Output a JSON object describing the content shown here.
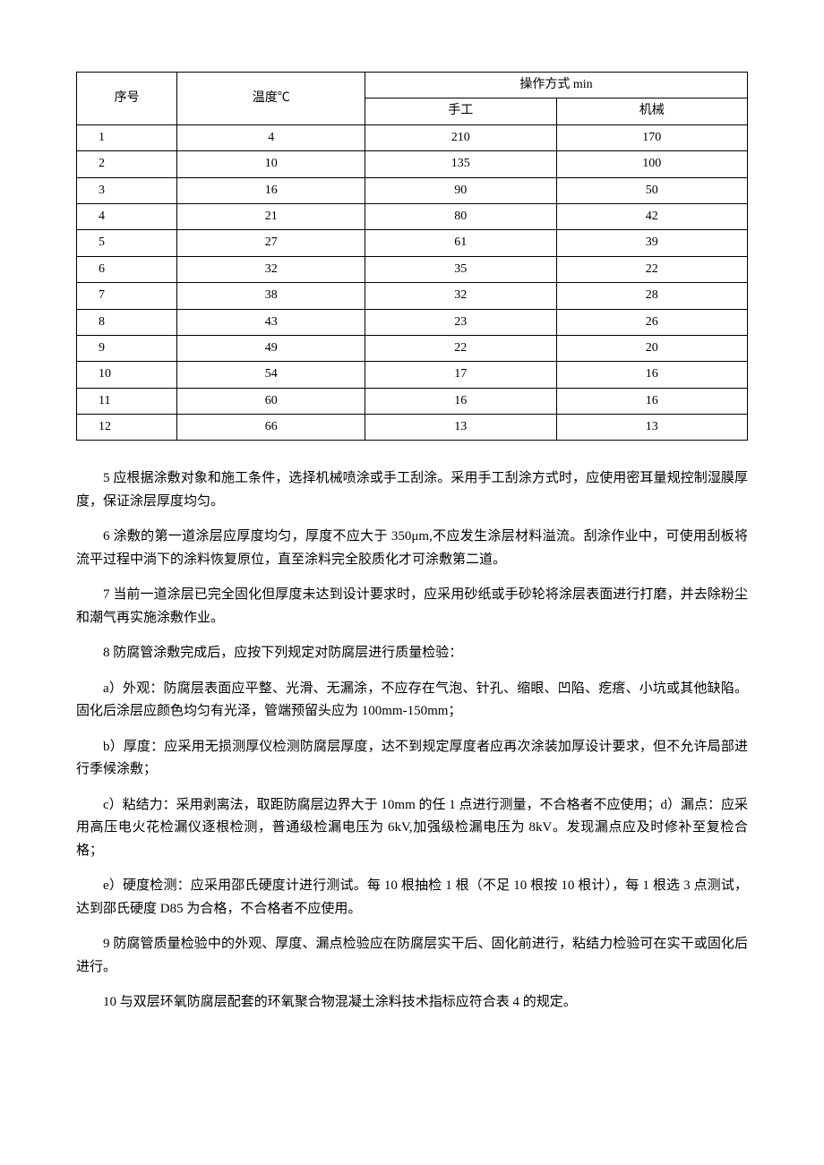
{
  "table": {
    "header": {
      "col1": "序号",
      "col2": "温度℃",
      "col3_group": "操作方式 min",
      "col3a": "手工",
      "col3b": "机械"
    },
    "rows": [
      {
        "seq": "1",
        "temp": "4",
        "manual": "210",
        "mech": "170"
      },
      {
        "seq": "2",
        "temp": "10",
        "manual": "135",
        "mech": "100"
      },
      {
        "seq": "3",
        "temp": "16",
        "manual": "90",
        "mech": "50"
      },
      {
        "seq": "4",
        "temp": "21",
        "manual": "80",
        "mech": "42"
      },
      {
        "seq": "5",
        "temp": "27",
        "manual": "61",
        "mech": "39"
      },
      {
        "seq": "6",
        "temp": "32",
        "manual": "35",
        "mech": "22"
      },
      {
        "seq": "7",
        "temp": "38",
        "manual": "32",
        "mech": "28"
      },
      {
        "seq": "8",
        "temp": "43",
        "manual": "23",
        "mech": "26"
      },
      {
        "seq": "9",
        "temp": "49",
        "manual": "22",
        "mech": "20"
      },
      {
        "seq": "10",
        "temp": "54",
        "manual": "17",
        "mech": "16"
      },
      {
        "seq": "11",
        "temp": "60",
        "manual": "16",
        "mech": "16"
      },
      {
        "seq": "12",
        "temp": "66",
        "manual": "13",
        "mech": "13"
      }
    ],
    "col_widths": [
      "15%",
      "28%",
      "28.5%",
      "28.5%"
    ]
  },
  "paragraphs": {
    "p5": "5 应根据涂敷对象和施工条件，选择机械喷涂或手工刮涂。采用手工刮涂方式时，应使用密耳量规控制湿膜厚度，保证涂层厚度均匀。",
    "p6": "6 涂敷的第一道涂层应厚度均匀，厚度不应大于 350μm,不应发生涂层材料溢流。刮涂作业中，可使用刮板将流平过程中淌下的涂料恢复原位，直至涂料完全胶质化才可涂敷第二道。",
    "p7": "7 当前一道涂层已完全固化但厚度未达到设计要求时，应采用砂纸或手砂轮将涂层表面进行打磨，并去除粉尘和潮气再实施涂敷作业。",
    "p8": "8 防腐管涂敷完成后，应按下列规定对防腐层进行质量检验：",
    "pa": "a）外观：防腐层表面应平整、光滑、无漏涂，不应存在气泡、针孔、缩眼、凹陷、疙瘩、小坑或其他缺陷。固化后涂层应颜色均匀有光泽，管端预留头应为 100mm-150mm；",
    "pb": "b）厚度：应采用无损测厚仪检测防腐层厚度，达不到规定厚度者应再次涂装加厚设计要求，但不允许局部进行季候涂敷；",
    "pc": "c）粘结力：采用剥离法，取距防腐层边界大于 10mm 的任 1 点进行测量，不合格者不应使用；d）漏点：应采用高压电火花检漏仪逐根检测，普通级检漏电压为 6kV,加强级检漏电压为 8kV。发现漏点应及时修补至复检合格；",
    "pe": "e）硬度检测：应采用邵氏硬度计进行测试。每 10 根抽检 1 根（不足 10 根按 10 根计），每 1 根选 3 点测试，达到邵氏硬度 D85 为合格，不合格者不应使用。",
    "p9": "9 防腐管质量检验中的外观、厚度、漏点检验应在防腐层实干后、固化前进行，粘结力检验可在实干或固化后进行。",
    "p10": "10 与双层环氧防腐层配套的环氧聚合物混凝土涂料技术指标应符合表 4 的规定。"
  }
}
